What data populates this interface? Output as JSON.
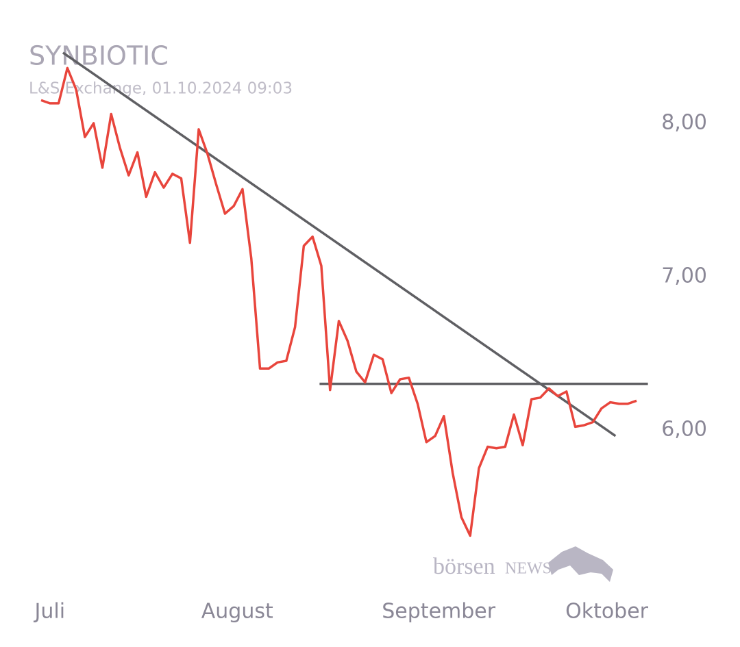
{
  "chart_data": {
    "type": "line",
    "title": "SYNBIOTIC",
    "subtitle": "L&S Exchange, 01.10.2024 09:03",
    "watermark": {
      "first": "börsen",
      "second": "NEWS"
    },
    "series": [
      {
        "color": "#e8453c",
        "values": [
          8.15,
          8.13,
          8.13,
          8.36,
          8.22,
          7.91,
          8.0,
          7.71,
          8.06,
          7.84,
          7.66,
          7.81,
          7.52,
          7.68,
          7.58,
          7.67,
          7.64,
          7.22,
          7.96,
          7.8,
          7.6,
          7.41,
          7.46,
          7.57,
          7.12,
          6.4,
          6.4,
          6.44,
          6.45,
          6.67,
          7.2,
          7.26,
          7.07,
          6.26,
          6.71,
          6.58,
          6.38,
          6.31,
          6.49,
          6.46,
          6.24,
          6.33,
          6.34,
          6.17,
          5.92,
          5.96,
          6.09,
          5.72,
          5.43,
          5.31,
          5.75,
          5.89,
          5.88,
          5.89,
          6.1,
          5.9,
          6.2,
          6.21,
          6.27,
          6.22,
          6.25,
          6.02,
          6.03,
          6.05,
          6.14,
          6.18,
          6.17,
          6.17,
          6.19
        ]
      }
    ],
    "trendlines": [
      {
        "color": "#5f5f63",
        "x": [
          2.5,
          65.6
        ],
        "y": [
          8.46,
          5.96
        ]
      },
      {
        "color": "#5f5f63",
        "x": [
          31.8,
          69.3
        ],
        "y": [
          6.3,
          6.3
        ]
      }
    ],
    "xlim": [
      0,
      68
    ],
    "xticks": [
      {
        "value": 1,
        "label": "Juli"
      },
      {
        "value": 22.4,
        "label": "August"
      },
      {
        "value": 45.4,
        "label": "September"
      },
      {
        "value": 64.6,
        "label": "Oktober"
      }
    ],
    "ylim": [
      5.2,
      8.5
    ],
    "yticks": [
      {
        "value": 6,
        "label": "6,00"
      },
      {
        "value": 7,
        "label": "7,00"
      },
      {
        "value": 8,
        "label": "8,00"
      }
    ]
  }
}
